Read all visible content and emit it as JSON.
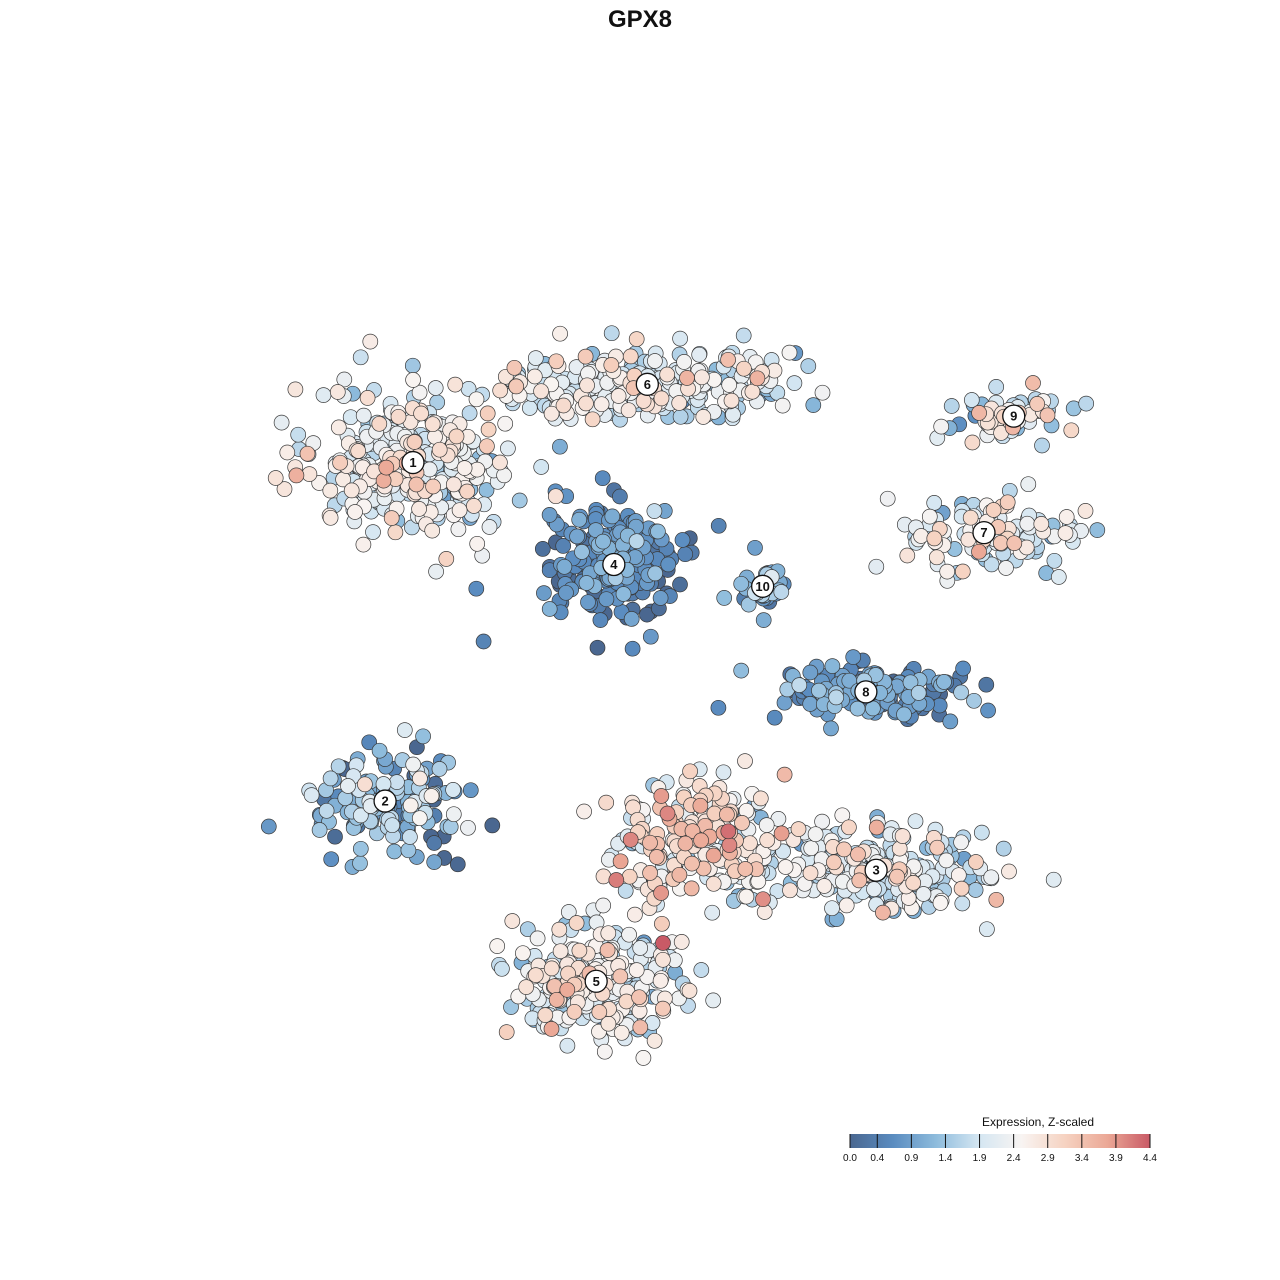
{
  "chart_data": {
    "type": "scatter",
    "title": "GPX8",
    "xlabel": "",
    "ylabel": "",
    "grid": false,
    "legend_placement": "bottom-right",
    "colorbar": {
      "title": "Expression, Z-scaled",
      "min": 0.0,
      "max": 4.4,
      "ticks": [
        "0.0",
        "0.4",
        "0.9",
        "1.4",
        "1.9",
        "2.4",
        "2.9",
        "3.4",
        "3.9",
        "4.4"
      ],
      "palette": [
        "#4a6790",
        "#5a8cc0",
        "#8dbbdc",
        "#d4e6f2",
        "#f8f4f2",
        "#f6d3c2",
        "#eba896",
        "#c95a66"
      ]
    },
    "clusters": [
      {
        "label": "1",
        "x": 0.229,
        "y": 0.695,
        "spread_x": 0.095,
        "spread_y": 0.075,
        "count": 360,
        "mean_expr": 2.25,
        "sd_expr": 0.55
      },
      {
        "label": "6",
        "x": 0.481,
        "y": 0.781,
        "spread_x": 0.14,
        "spread_y": 0.035,
        "count": 300,
        "mean_expr": 2.05,
        "sd_expr": 0.55
      },
      {
        "label": "9",
        "x": 0.875,
        "y": 0.746,
        "spread_x": 0.055,
        "spread_y": 0.028,
        "count": 70,
        "mean_expr": 2.1,
        "sd_expr": 0.65
      },
      {
        "label": "7",
        "x": 0.843,
        "y": 0.618,
        "spread_x": 0.085,
        "spread_y": 0.04,
        "count": 130,
        "mean_expr": 2.2,
        "sd_expr": 0.6
      },
      {
        "label": "4",
        "x": 0.445,
        "y": 0.583,
        "spread_x": 0.065,
        "spread_y": 0.055,
        "count": 260,
        "mean_expr": 0.55,
        "sd_expr": 0.4
      },
      {
        "label": "10",
        "x": 0.605,
        "y": 0.559,
        "spread_x": 0.025,
        "spread_y": 0.03,
        "count": 35,
        "mean_expr": 0.9,
        "sd_expr": 0.5
      },
      {
        "label": "8",
        "x": 0.716,
        "y": 0.443,
        "spread_x": 0.09,
        "spread_y": 0.032,
        "count": 170,
        "mean_expr": 0.65,
        "sd_expr": 0.5
      },
      {
        "label": "2",
        "x": 0.199,
        "y": 0.323,
        "spread_x": 0.075,
        "spread_y": 0.05,
        "count": 160,
        "mean_expr": 1.05,
        "sd_expr": 0.8
      },
      {
        "label": "3",
        "x": 0.727,
        "y": 0.247,
        "spread_x": 0.11,
        "spread_y": 0.045,
        "count": 270,
        "mean_expr": 2.0,
        "sd_expr": 0.6
      },
      {
        "label": "5",
        "x": 0.426,
        "y": 0.125,
        "spread_x": 0.09,
        "spread_y": 0.055,
        "count": 260,
        "mean_expr": 2.2,
        "sd_expr": 0.6
      },
      {
        "label": "",
        "x": 0.535,
        "y": 0.28,
        "spread_x": 0.085,
        "spread_y": 0.06,
        "count": 220,
        "mean_expr": 2.55,
        "sd_expr": 0.7
      }
    ]
  }
}
